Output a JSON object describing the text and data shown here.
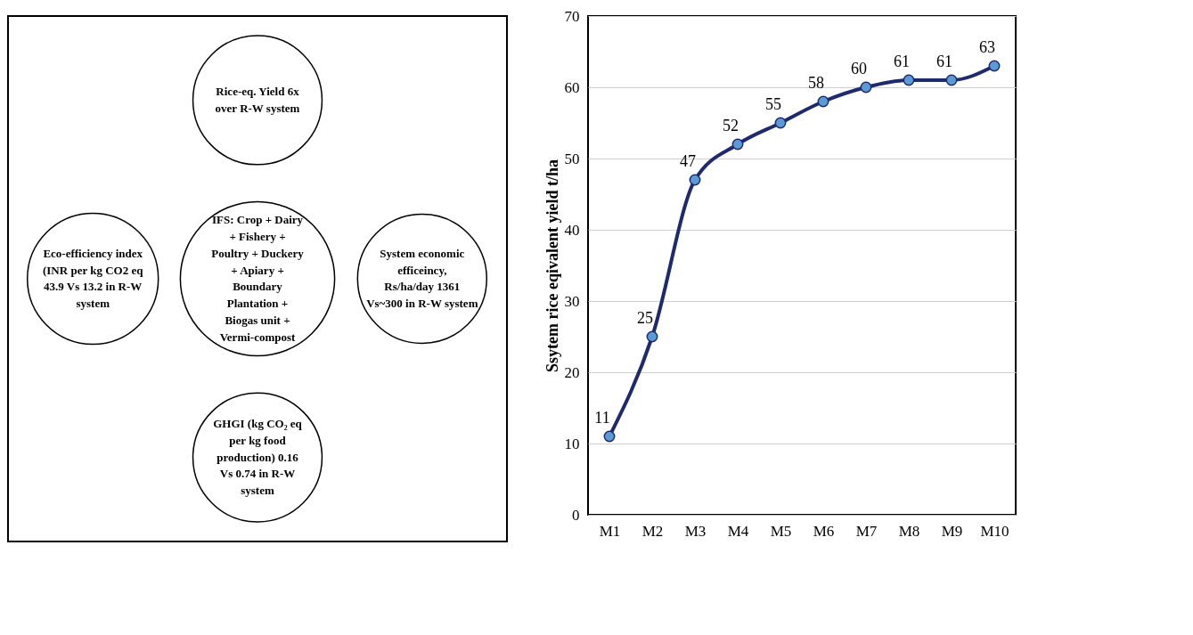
{
  "chart_data": [
    {
      "type": "other",
      "annotations": [
        "Rice-eq. Yield 6x over R-W system",
        "IFS:  Crop + Dairy + Fishery + Poultry + Duckery + Apiary + Boundary Plantation + Biogas unit + Vermi-compost",
        "System economic efficeincy, Rs/ha/day 1361 Vs~300 in R-W system",
        "GHGI (kg CO₂ eq per kg food production) 0.16 Vs 0.74 in R-W system",
        "Eco-efficiency index (INR per kg CO2 eq 43.9 Vs 13.2 in R-W system"
      ]
    },
    {
      "type": "line",
      "categories": [
        "M1",
        "M2",
        "M3",
        "M4",
        "M5",
        "M6",
        "M7",
        "M8",
        "M9",
        "M10"
      ],
      "series": [
        {
          "color": "#1f2a6e",
          "values": [
            11,
            25,
            47,
            52,
            55,
            58,
            60,
            61,
            61,
            63
          ]
        }
      ],
      "ylabel": "Ssytem rice eqivalent yield t/ha",
      "ylim": [
        0,
        70
      ],
      "yticks": [
        0,
        10,
        20,
        30,
        40,
        50,
        60,
        70
      ],
      "grid": "y",
      "marker": "circle",
      "line_style": "solid",
      "data_labels": true
    }
  ]
}
